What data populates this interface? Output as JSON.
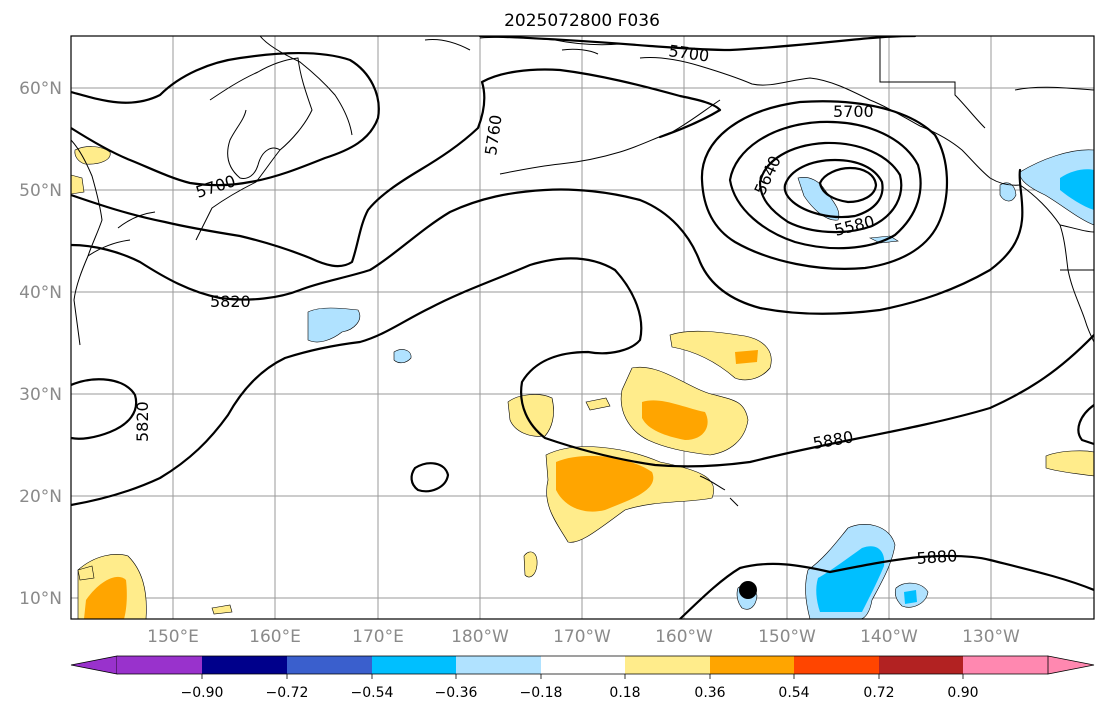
{
  "title": "2025072800 F036",
  "map": {
    "lat_labels": [
      "60°N",
      "50°N",
      "40°N",
      "30°N",
      "20°N",
      "10°N"
    ],
    "lon_labels": [
      "150°E",
      "160°E",
      "170°E",
      "180°W",
      "170°W",
      "160°W",
      "150°W",
      "140°W",
      "130°W"
    ],
    "contour_labels": [
      "5700",
      "5700",
      "5700",
      "5760",
      "5640",
      "5580",
      "5820",
      "5820",
      "5880",
      "5880"
    ]
  },
  "colorbar": {
    "ticks": [
      "−0.90",
      "−0.72",
      "−0.54",
      "−0.36",
      "−0.18",
      "0.18",
      "0.36",
      "0.54",
      "0.72",
      "0.90"
    ],
    "colors": [
      "#9932cc",
      "#00008b",
      "#3a5fcd",
      "#00bfff",
      "#b0e2ff",
      "#ffffff",
      "#ffec8b",
      "#ffa500",
      "#ff4500",
      "#b22222",
      "#ff88b0"
    ]
  }
}
